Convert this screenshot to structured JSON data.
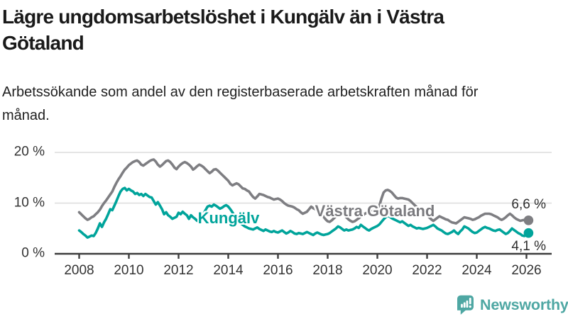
{
  "header": {
    "title": "Lägre ungdomsarbetslöshet i Kungälv än i Västra Götaland",
    "subtitle": "Arbetssökande som andel av den registerbaserade arbetskraften månad för månad."
  },
  "chart_data": {
    "type": "line",
    "x_unit": "month",
    "x_range": [
      "2008-01",
      "2026-02"
    ],
    "ylim": [
      0,
      21
    ],
    "grid": "horizontal",
    "legend_position": "inline-labels",
    "colors": {
      "grid": "#dcdcdc",
      "axis": "#3d3d3d",
      "tick_text": "#333333"
    },
    "y_ticks": [
      {
        "label": "0 %",
        "value": 0
      },
      {
        "label": "10 %",
        "value": 10
      },
      {
        "label": "20 %",
        "value": 20
      }
    ],
    "x_ticks": [
      {
        "label": "2008",
        "year": 2008
      },
      {
        "label": "2010",
        "year": 2010
      },
      {
        "label": "2012",
        "year": 2012
      },
      {
        "label": "2014",
        "year": 2014
      },
      {
        "label": "2016",
        "year": 2016
      },
      {
        "label": "2018",
        "year": 2018
      },
      {
        "label": "2020",
        "year": 2020
      },
      {
        "label": "2022",
        "year": 2022
      },
      {
        "label": "2024",
        "year": 2024
      },
      {
        "label": "2026",
        "year": 2026
      }
    ],
    "series": [
      {
        "name": "Västra Götaland",
        "color": "#7e7e82",
        "end_label": "6,6 %",
        "values": [
          8.2,
          7.8,
          7.4,
          7.0,
          6.7,
          6.9,
          7.2,
          7.4,
          7.8,
          8.2,
          8.7,
          9.4,
          10.0,
          10.5,
          11.1,
          11.7,
          12.3,
          13.2,
          14.0,
          14.7,
          15.3,
          16.0,
          16.6,
          17.0,
          17.5,
          17.8,
          18.1,
          18.3,
          18.4,
          18.1,
          17.6,
          17.4,
          17.7,
          18.0,
          18.3,
          18.5,
          18.6,
          18.2,
          17.6,
          17.2,
          17.5,
          17.9,
          18.3,
          18.4,
          18.1,
          17.6,
          17.0,
          16.7,
          17.2,
          17.6,
          17.9,
          18.1,
          17.9,
          17.6,
          17.2,
          16.6,
          16.9,
          17.3,
          17.6,
          17.4,
          17.1,
          16.7,
          16.3,
          15.9,
          16.2,
          16.6,
          16.7,
          16.4,
          16.0,
          15.6,
          15.2,
          14.8,
          14.4,
          13.8,
          13.5,
          13.7,
          13.9,
          13.7,
          13.3,
          12.9,
          12.8,
          12.5,
          12.3,
          11.7,
          11.2,
          10.9,
          11.3,
          11.8,
          11.7,
          11.6,
          11.4,
          11.2,
          11.1,
          10.9,
          10.7,
          10.8,
          10.9,
          10.7,
          10.4,
          10.0,
          9.7,
          9.5,
          9.4,
          9.3,
          9.1,
          8.8,
          8.6,
          8.2,
          7.9,
          8.1,
          8.3,
          8.8,
          9.3,
          9.0,
          8.8,
          8.5,
          8.3,
          7.8,
          7.3,
          6.8,
          6.4,
          6.3,
          6.6,
          7.0,
          7.4,
          7.8,
          8.2,
          8.0,
          7.6,
          7.2,
          6.8,
          6.5,
          6.3,
          6.4,
          6.7,
          7.0,
          7.4,
          7.6,
          7.9,
          8.1,
          8.3,
          8.5,
          8.6,
          8.8,
          9.0,
          9.5,
          10.9,
          12.1,
          12.5,
          12.6,
          12.4,
          12.1,
          11.6,
          11.1,
          10.9,
          11.0,
          11.0,
          10.9,
          10.8,
          10.7,
          10.4,
          10.0,
          9.6,
          9.2,
          8.8,
          8.5,
          8.2,
          7.9,
          7.6,
          7.2,
          6.8,
          6.5,
          6.8,
          7.1,
          7.4,
          7.2,
          7.0,
          6.8,
          6.7,
          6.4,
          6.2,
          6.1,
          6.0,
          6.3,
          6.6,
          6.9,
          7.2,
          7.1,
          7.0,
          6.9,
          6.7,
          6.8,
          7.0,
          7.2,
          7.5,
          7.7,
          7.9,
          7.9,
          7.9,
          7.8,
          7.6,
          7.4,
          7.2,
          6.9,
          6.7,
          6.9,
          7.2,
          7.6,
          7.9,
          7.6,
          7.2,
          6.9,
          6.7,
          6.5,
          6.6,
          6.7,
          6.7,
          6.6
        ]
      },
      {
        "name": "Kungälv",
        "color": "#00a49b",
        "end_label": "4,1 %",
        "values": [
          4.6,
          4.3,
          3.9,
          3.6,
          3.2,
          3.4,
          3.6,
          3.5,
          4.1,
          5.0,
          6.0,
          5.3,
          6.2,
          6.9,
          7.8,
          8.8,
          8.6,
          9.5,
          10.4,
          11.4,
          12.3,
          12.8,
          13.0,
          12.5,
          12.8,
          12.5,
          12.3,
          11.8,
          12.0,
          11.6,
          11.8,
          11.4,
          11.8,
          11.5,
          11.2,
          11.1,
          10.4,
          9.7,
          10.2,
          9.5,
          8.8,
          7.8,
          8.2,
          7.6,
          7.3,
          6.9,
          7.1,
          7.3,
          8.1,
          7.8,
          8.3,
          7.9,
          7.6,
          6.9,
          7.6,
          7.2,
          6.9,
          6.5,
          6.8,
          7.1,
          7.8,
          8.6,
          9.3,
          9.5,
          9.3,
          9.7,
          9.5,
          9.2,
          8.9,
          9.1,
          9.4,
          9.6,
          9.3,
          8.8,
          8.2,
          7.5,
          6.9,
          6.4,
          6.0,
          5.7,
          5.4,
          5.2,
          5.0,
          4.9,
          4.8,
          5.0,
          5.2,
          4.9,
          4.7,
          4.5,
          4.8,
          4.6,
          4.4,
          4.3,
          4.5,
          4.3,
          4.2,
          4.4,
          4.6,
          4.3,
          4.0,
          4.2,
          4.5,
          4.3,
          4.0,
          3.9,
          4.1,
          4.0,
          3.9,
          4.1,
          4.3,
          4.1,
          3.9,
          3.7,
          4.0,
          4.2,
          4.0,
          3.8,
          3.7,
          3.8,
          3.9,
          4.1,
          4.4,
          4.7,
          5.0,
          5.4,
          5.2,
          4.9,
          4.6,
          4.8,
          4.6,
          4.7,
          4.8,
          5.0,
          5.3,
          5.1,
          5.7,
          5.4,
          5.1,
          4.8,
          4.6,
          4.9,
          5.1,
          5.3,
          5.5,
          5.8,
          6.3,
          6.8,
          7.2,
          7.5,
          7.3,
          7.0,
          6.8,
          6.6,
          6.4,
          6.2,
          6.4,
          6.1,
          5.8,
          5.5,
          5.7,
          5.4,
          5.2,
          5.0,
          5.1,
          5.0,
          4.9,
          5.0,
          5.1,
          5.3,
          5.5,
          5.7,
          5.4,
          5.0,
          4.8,
          4.6,
          4.3,
          4.0,
          3.9,
          4.1,
          4.3,
          4.6,
          4.2,
          3.9,
          4.4,
          4.8,
          5.4,
          5.2,
          5.0,
          4.6,
          4.3,
          4.1,
          4.2,
          4.5,
          4.8,
          5.1,
          5.3,
          5.1,
          5.0,
          4.8,
          4.6,
          4.5,
          4.7,
          4.8,
          4.5,
          4.2,
          3.9,
          4.1,
          4.5,
          5.0,
          4.7,
          4.4,
          4.1,
          3.9,
          3.6,
          3.5,
          3.8,
          4.1
        ]
      }
    ]
  },
  "branding": {
    "name": "Newsworthy",
    "color": "#4ea7a3"
  }
}
